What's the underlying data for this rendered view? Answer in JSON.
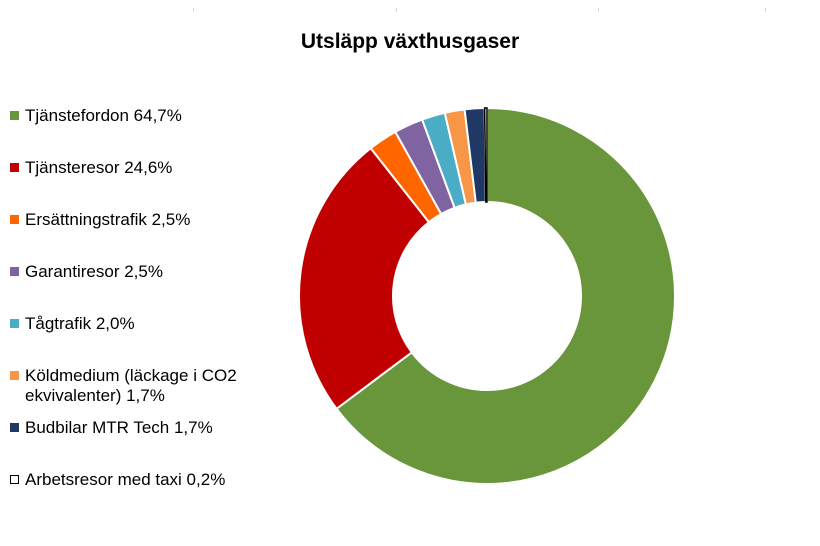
{
  "chart_data": {
    "type": "pie",
    "title": "Utsläpp växthusgaser",
    "donut": true,
    "legend_position": "left",
    "unit": "%",
    "slices": [
      {
        "label": "Tjänstefordon 64,7%",
        "value": 64.7,
        "color": "#6a963b"
      },
      {
        "label": "Tjänsteresor 24,6%",
        "value": 24.6,
        "color": "#c00000"
      },
      {
        "label": "Ersättningstrafik 2,5%",
        "value": 2.5,
        "color": "#ff6600"
      },
      {
        "label": "Garantiresor 2,5%",
        "value": 2.5,
        "color": "#8064a2"
      },
      {
        "label": "Tågtrafik 2,0%",
        "value": 2.0,
        "color": "#4bacc6"
      },
      {
        "label": "Köldmedium (läckage i CO2 ekvivalenter) 1,7%",
        "value": 1.7,
        "color": "#f79646"
      },
      {
        "label": "Budbilar MTR Tech 1,7%",
        "value": 1.7,
        "color": "#1f3864"
      },
      {
        "label": "Arbetsresor med taxi 0,2%",
        "value": 0.2,
        "color": "#ffffff",
        "outline": "#000000"
      }
    ]
  }
}
